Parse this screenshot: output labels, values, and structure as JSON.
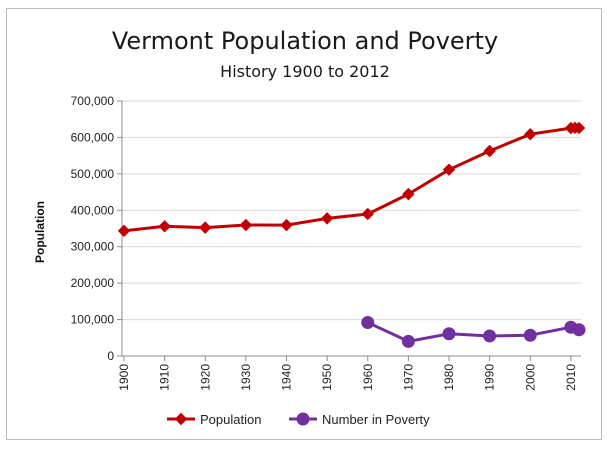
{
  "chart_data": {
    "type": "line",
    "title": "Vermont Population and Poverty",
    "subtitle": "History 1900 to 2012",
    "xlabel": "",
    "ylabel": "Population",
    "ylim": [
      0,
      700000
    ],
    "yticks": [
      0,
      100000,
      200000,
      300000,
      400000,
      500000,
      600000,
      700000
    ],
    "ytick_labels": [
      "0",
      "100,000",
      "200,000",
      "300,000",
      "400,000",
      "500,000",
      "600,000",
      "700,000"
    ],
    "xlim": [
      1900,
      2012
    ],
    "xticks": [
      1900,
      1910,
      1920,
      1930,
      1940,
      1950,
      1960,
      1970,
      1980,
      1990,
      2000,
      2010
    ],
    "xtick_labels": [
      "1900",
      "1910",
      "1920",
      "1930",
      "1940",
      "1950",
      "1960",
      "1970",
      "1980",
      "1990",
      "2000",
      "2010"
    ],
    "grid": "horizontal",
    "legend_position": "bottom",
    "series": [
      {
        "name": "Population",
        "color": "#c00000",
        "marker": "diamond",
        "x": [
          1900,
          1910,
          1920,
          1930,
          1940,
          1950,
          1960,
          1970,
          1980,
          1990,
          2000,
          2010,
          2011,
          2012
        ],
        "values": [
          343641,
          355956,
          352428,
          359611,
          359231,
          377747,
          389881,
          444330,
          511456,
          562758,
          608827,
          625741,
          626431,
          626011
        ]
      },
      {
        "name": "Number in Poverty",
        "color": "#7030a0",
        "marker": "circle",
        "x": [
          1960,
          1970,
          1980,
          1990,
          2000,
          2010,
          2012
        ],
        "values": [
          92000,
          40000,
          61000,
          55000,
          57000,
          79000,
          72000
        ]
      }
    ]
  }
}
